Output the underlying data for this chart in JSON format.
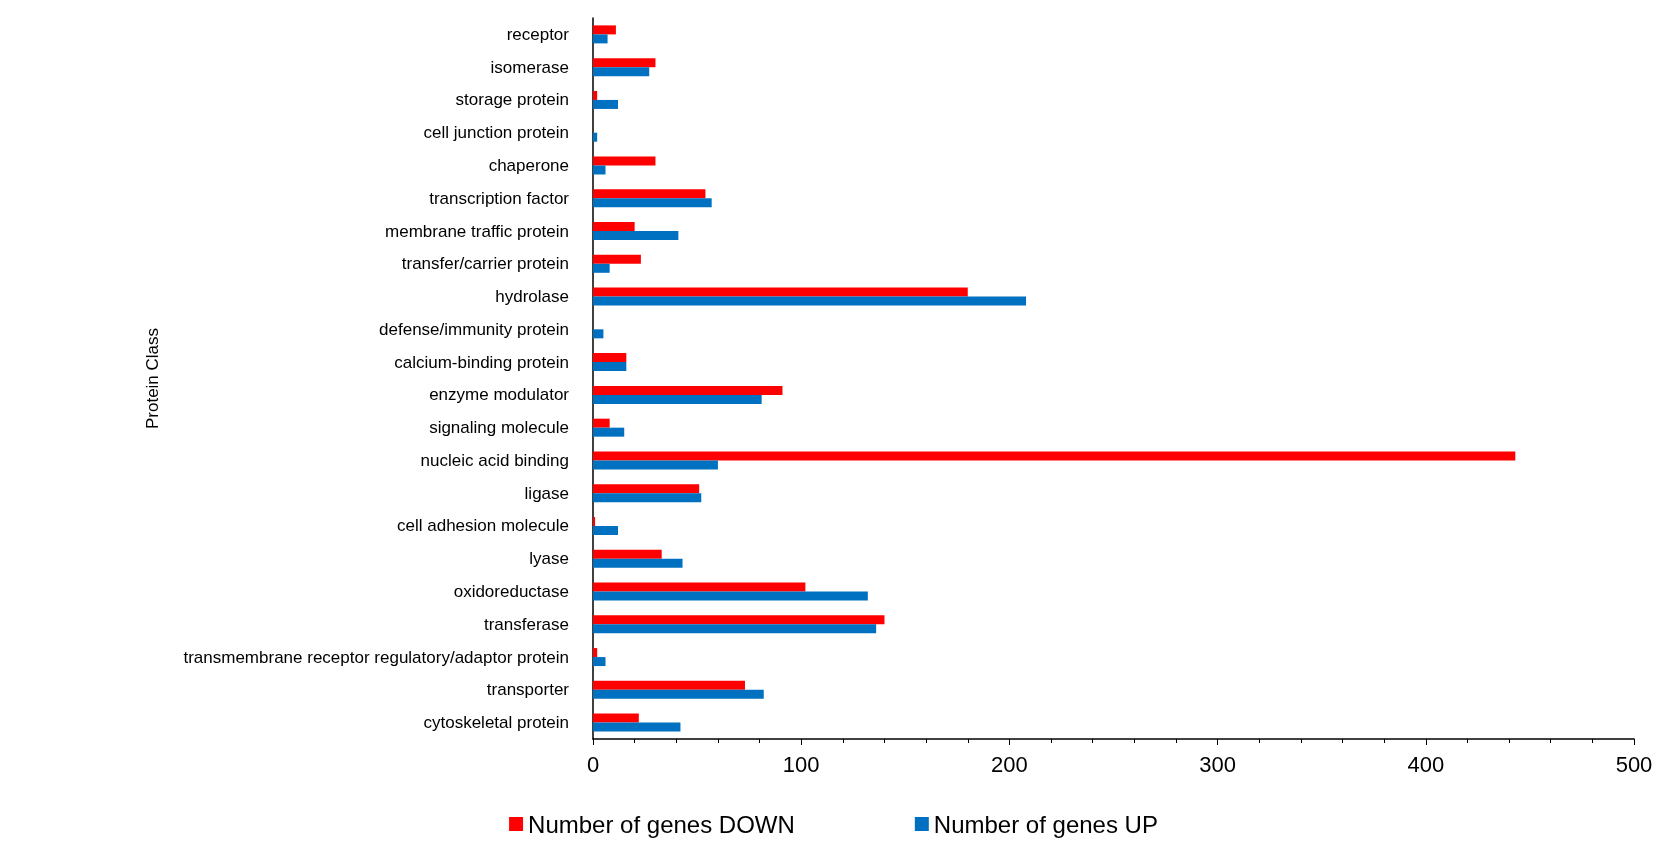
{
  "chart_data": {
    "type": "bar",
    "orientation": "horizontal",
    "ylabel": "Protein Class",
    "categories": [
      "receptor",
      "isomerase",
      "storage protein",
      "cell junction protein",
      "chaperone",
      "transcription factor",
      "membrane traffic protein",
      "transfer/carrier protein",
      "hydrolase",
      "defense/immunity protein",
      "calcium-binding protein",
      "enzyme modulator",
      "signaling molecule",
      "nucleic acid binding",
      "ligase",
      "cell adhesion molecule",
      "lyase",
      "oxidoreductase",
      "transferase",
      "transmembrane receptor regulatory/adaptor protein",
      "transporter",
      "cytoskeletal protein"
    ],
    "series": [
      {
        "name": "Number of genes DOWN",
        "color": "#ff0000",
        "values": [
          11,
          30,
          2,
          0,
          30,
          54,
          20,
          23,
          180,
          0,
          16,
          91,
          8,
          443,
          51,
          1,
          33,
          102,
          140,
          2,
          73,
          22
        ]
      },
      {
        "name": "Number of genes UP",
        "color": "#0070c0",
        "values": [
          7,
          27,
          12,
          2,
          6,
          57,
          41,
          8,
          208,
          5,
          16,
          81,
          15,
          60,
          52,
          12,
          43,
          132,
          136,
          6,
          82,
          42
        ]
      }
    ],
    "xlim": [
      0,
      500
    ],
    "xticks": [
      0,
      100,
      200,
      300,
      400,
      500
    ],
    "grid": false,
    "legend": "bottom"
  }
}
